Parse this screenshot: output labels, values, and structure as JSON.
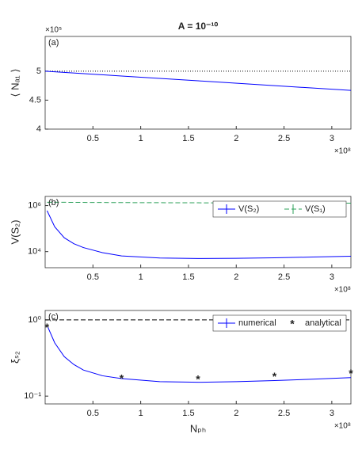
{
  "chart_data": [
    {
      "type": "line",
      "title": "A = 10⁻¹⁰",
      "panel_label": "(a)",
      "ylabel": "⟨ Nₐ₁ ⟩",
      "y_exponent": "×10⁵",
      "x_exponent": "×10⁸",
      "xlim": [
        0,
        3.2
      ],
      "xticks": [
        0.5,
        1,
        1.5,
        2,
        2.5,
        3
      ],
      "ylim": [
        4,
        5.6
      ],
      "yticks": [
        4,
        4.5,
        5
      ],
      "yscale": "linear",
      "hline": 5,
      "hline_style": "dotted",
      "hline_color": "#000000",
      "series": [
        {
          "name": null,
          "color": "#0000ff",
          "style": "solid",
          "x": [
            0,
            0.8,
            1.6,
            2.4,
            3.2
          ],
          "values": [
            5.0,
            4.917,
            4.834,
            4.751,
            4.668
          ]
        }
      ]
    },
    {
      "type": "line",
      "panel_label": "(b)",
      "ylabel": "V(S₂)",
      "x_exponent": "×10⁸",
      "xlim": [
        0,
        3.2
      ],
      "xticks": [
        0.5,
        1,
        1.5,
        2,
        2.5,
        3
      ],
      "ylim": [
        2000,
        2500000
      ],
      "yscale": "log",
      "yticks": [
        {
          "value": 10000,
          "label": "10⁴"
        },
        {
          "value": 1000000,
          "label": "10⁶"
        }
      ],
      "legend": "upper right",
      "series": [
        {
          "name": "V(S₂)",
          "color": "#0000ff",
          "style": "solid",
          "x": [
            0.02,
            0.1,
            0.2,
            0.3,
            0.4,
            0.6,
            0.8,
            1.2,
            1.6,
            2.0,
            2.4,
            2.8,
            3.2
          ],
          "values": [
            600000,
            120000,
            40000,
            22000,
            15000,
            9000,
            6500,
            5300,
            5000,
            5100,
            5400,
            5800,
            6300
          ]
        },
        {
          "name": "V(S₁)",
          "color": "#2ca05a",
          "style": "dashed",
          "x": [
            0.02,
            0.8,
            1.6,
            2.4,
            3.2
          ],
          "values": [
            1400000,
            1350000,
            1320000,
            1300000,
            1270000
          ]
        }
      ]
    },
    {
      "type": "line",
      "panel_label": "(c)",
      "ylabel": "ξₛ₂",
      "xlabel": "Nₚₕ",
      "x_exponent": "×10⁸",
      "xlim": [
        0,
        3.2
      ],
      "xticks": [
        0.5,
        1,
        1.5,
        2,
        2.5,
        3
      ],
      "ylim": [
        0.079,
        1.33
      ],
      "yscale": "log",
      "yticks": [
        {
          "value": 0.1,
          "label": "10⁻¹"
        },
        {
          "value": 1,
          "label": "10⁰"
        }
      ],
      "legend": "upper right",
      "hline": 1,
      "hline_style": "dashed",
      "hline_color": "#000000",
      "series": [
        {
          "name": "numerical",
          "color": "#0000ff",
          "style": "solid",
          "x": [
            0.02,
            0.1,
            0.2,
            0.3,
            0.4,
            0.6,
            0.8,
            1.2,
            1.6,
            2.0,
            2.4,
            2.8,
            3.2
          ],
          "values": [
            0.85,
            0.5,
            0.33,
            0.26,
            0.22,
            0.185,
            0.17,
            0.155,
            0.152,
            0.155,
            0.16,
            0.167,
            0.175
          ]
        },
        {
          "name": "analytical",
          "color": "#ff0000",
          "style": "markers",
          "x": [
            0.02,
            0.8,
            1.6,
            2.4,
            3.2
          ],
          "values": [
            0.82,
            0.175,
            0.17,
            0.185,
            0.205
          ]
        }
      ]
    }
  ]
}
